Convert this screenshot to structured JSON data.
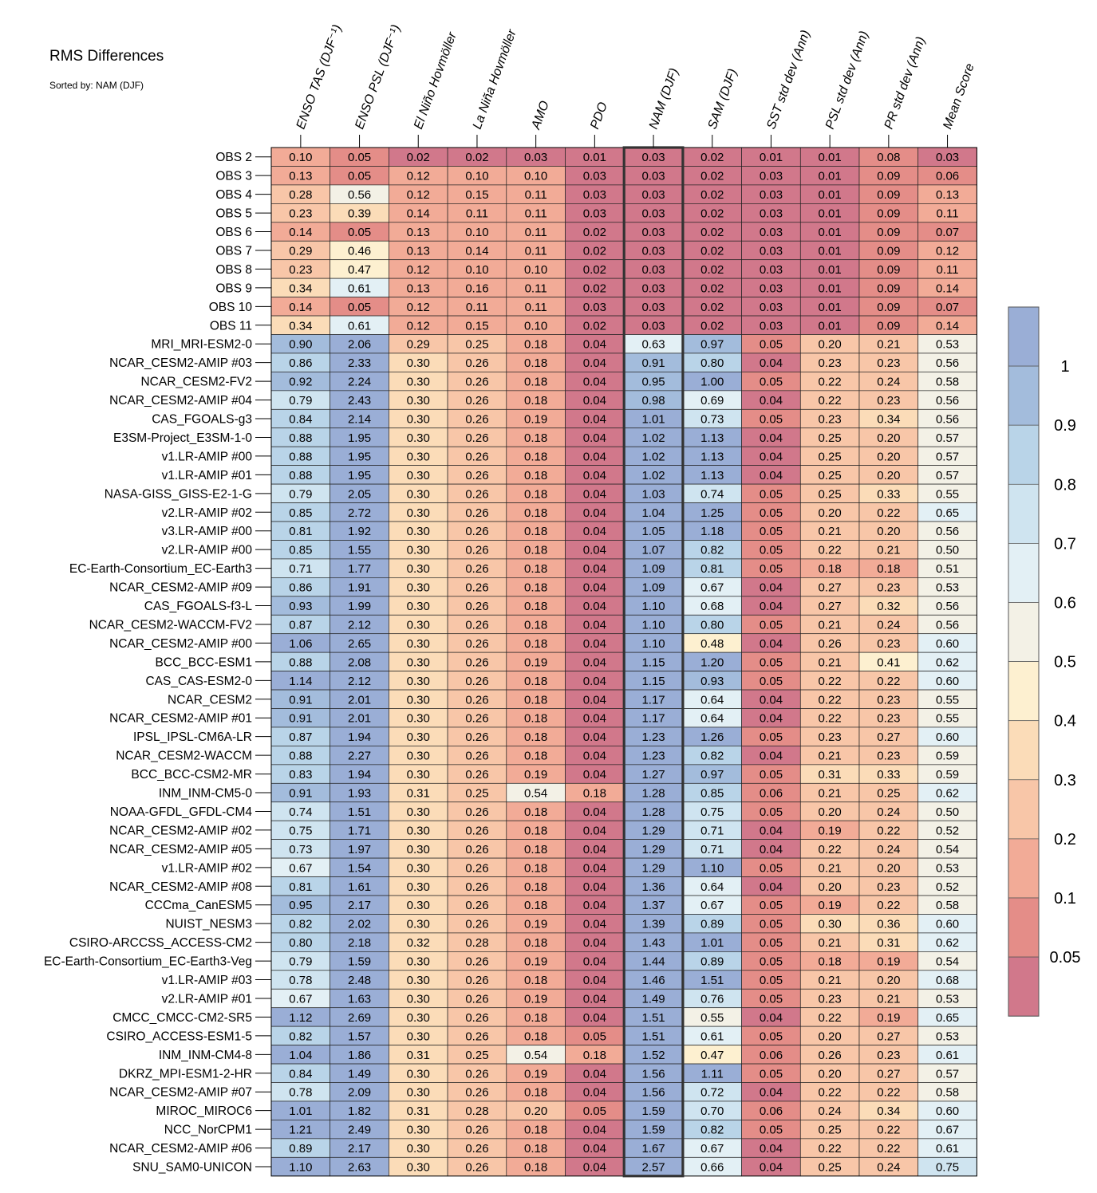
{
  "title": "RMS Differences",
  "subtitle": "Sorted by: NAM (DJF)",
  "chart_data": {
    "type": "heatmap",
    "title": "RMS Differences",
    "subtitle": "Sorted by: NAM (DJF)",
    "highlighted_column": "NAM (DJF)",
    "columns": [
      "ENSO TAS (DJF⁻¹)",
      "ENSO PSL (DJF⁻¹)",
      "El Niño Hovmöller",
      "La Niña Hovmöller",
      "AMO",
      "PDO",
      "NAM (DJF)",
      "SAM (DJF)",
      "SST std dev (Ann)",
      "PSL std dev (Ann)",
      "PR std dev (Ann)",
      "Mean Score"
    ],
    "rows": [
      {
        "name": "OBS 2",
        "values": [
          0.1,
          0.05,
          0.02,
          0.02,
          0.03,
          0.01,
          0.03,
          0.02,
          0.01,
          0.01,
          0.08,
          0.03
        ]
      },
      {
        "name": "OBS 3",
        "values": [
          0.13,
          0.05,
          0.12,
          0.1,
          0.1,
          0.03,
          0.03,
          0.02,
          0.03,
          0.01,
          0.09,
          0.06
        ]
      },
      {
        "name": "OBS 4",
        "values": [
          0.28,
          0.56,
          0.12,
          0.15,
          0.11,
          0.03,
          0.03,
          0.02,
          0.03,
          0.01,
          0.09,
          0.13
        ]
      },
      {
        "name": "OBS 5",
        "values": [
          0.23,
          0.39,
          0.14,
          0.11,
          0.11,
          0.03,
          0.03,
          0.02,
          0.03,
          0.01,
          0.09,
          0.11
        ]
      },
      {
        "name": "OBS 6",
        "values": [
          0.14,
          0.05,
          0.13,
          0.1,
          0.11,
          0.02,
          0.03,
          0.02,
          0.03,
          0.01,
          0.09,
          0.07
        ]
      },
      {
        "name": "OBS 7",
        "values": [
          0.29,
          0.46,
          0.13,
          0.14,
          0.11,
          0.02,
          0.03,
          0.02,
          0.03,
          0.01,
          0.09,
          0.12
        ]
      },
      {
        "name": "OBS 8",
        "values": [
          0.23,
          0.47,
          0.12,
          0.1,
          0.1,
          0.02,
          0.03,
          0.02,
          0.03,
          0.01,
          0.09,
          0.11
        ]
      },
      {
        "name": "OBS 9",
        "values": [
          0.34,
          0.61,
          0.13,
          0.16,
          0.11,
          0.02,
          0.03,
          0.02,
          0.03,
          0.01,
          0.09,
          0.14
        ]
      },
      {
        "name": "OBS 10",
        "values": [
          0.14,
          0.05,
          0.12,
          0.11,
          0.11,
          0.03,
          0.03,
          0.02,
          0.03,
          0.01,
          0.09,
          0.07
        ]
      },
      {
        "name": "OBS 11",
        "values": [
          0.34,
          0.61,
          0.12,
          0.15,
          0.1,
          0.02,
          0.03,
          0.02,
          0.03,
          0.01,
          0.09,
          0.14
        ]
      },
      {
        "name": "MRI_MRI-ESM2-0",
        "values": [
          0.9,
          2.06,
          0.29,
          0.25,
          0.18,
          0.04,
          0.63,
          0.97,
          0.05,
          0.2,
          0.21,
          0.53
        ]
      },
      {
        "name": "NCAR_CESM2-AMIP  #03",
        "values": [
          0.86,
          2.33,
          0.3,
          0.26,
          0.18,
          0.04,
          0.91,
          0.8,
          0.04,
          0.23,
          0.23,
          0.56
        ]
      },
      {
        "name": "NCAR_CESM2-FV2",
        "values": [
          0.92,
          2.24,
          0.3,
          0.26,
          0.18,
          0.04,
          0.95,
          1.0,
          0.05,
          0.22,
          0.24,
          0.58
        ]
      },
      {
        "name": "NCAR_CESM2-AMIP  #04",
        "values": [
          0.79,
          2.43,
          0.3,
          0.26,
          0.18,
          0.04,
          0.98,
          0.69,
          0.04,
          0.22,
          0.23,
          0.56
        ]
      },
      {
        "name": "CAS_FGOALS-g3",
        "values": [
          0.84,
          2.14,
          0.3,
          0.26,
          0.19,
          0.04,
          1.01,
          0.73,
          0.05,
          0.23,
          0.34,
          0.56
        ]
      },
      {
        "name": "E3SM-Project_E3SM-1-0",
        "values": [
          0.88,
          1.95,
          0.3,
          0.26,
          0.18,
          0.04,
          1.02,
          1.13,
          0.04,
          0.25,
          0.2,
          0.57
        ]
      },
      {
        "name": "v1.LR-AMIP  #00",
        "values": [
          0.88,
          1.95,
          0.3,
          0.26,
          0.18,
          0.04,
          1.02,
          1.13,
          0.04,
          0.25,
          0.2,
          0.57
        ]
      },
      {
        "name": "v1.LR-AMIP  #01",
        "values": [
          0.88,
          1.95,
          0.3,
          0.26,
          0.18,
          0.04,
          1.02,
          1.13,
          0.04,
          0.25,
          0.2,
          0.57
        ]
      },
      {
        "name": "NASA-GISS_GISS-E2-1-G",
        "values": [
          0.79,
          2.05,
          0.3,
          0.26,
          0.18,
          0.04,
          1.03,
          0.74,
          0.05,
          0.25,
          0.33,
          0.55
        ]
      },
      {
        "name": "v2.LR-AMIP  #02",
        "values": [
          0.85,
          2.72,
          0.3,
          0.26,
          0.18,
          0.04,
          1.04,
          1.25,
          0.05,
          0.2,
          0.22,
          0.65
        ]
      },
      {
        "name": "v3.LR-AMIP  #00",
        "values": [
          0.81,
          1.92,
          0.3,
          0.26,
          0.18,
          0.04,
          1.05,
          1.18,
          0.05,
          0.21,
          0.2,
          0.56
        ]
      },
      {
        "name": "v2.LR-AMIP  #00",
        "values": [
          0.85,
          1.55,
          0.3,
          0.26,
          0.18,
          0.04,
          1.07,
          0.82,
          0.05,
          0.22,
          0.21,
          0.5
        ]
      },
      {
        "name": "EC-Earth-Consortium_EC-Earth3",
        "values": [
          0.71,
          1.77,
          0.3,
          0.26,
          0.18,
          0.04,
          1.09,
          0.81,
          0.05,
          0.18,
          0.18,
          0.51
        ]
      },
      {
        "name": "NCAR_CESM2-AMIP  #09",
        "values": [
          0.86,
          1.91,
          0.3,
          0.26,
          0.18,
          0.04,
          1.09,
          0.67,
          0.04,
          0.27,
          0.23,
          0.53
        ]
      },
      {
        "name": "CAS_FGOALS-f3-L",
        "values": [
          0.93,
          1.99,
          0.3,
          0.26,
          0.18,
          0.04,
          1.1,
          0.68,
          0.04,
          0.27,
          0.32,
          0.56
        ]
      },
      {
        "name": "NCAR_CESM2-WACCM-FV2",
        "values": [
          0.87,
          2.12,
          0.3,
          0.26,
          0.18,
          0.04,
          1.1,
          0.8,
          0.05,
          0.21,
          0.24,
          0.56
        ]
      },
      {
        "name": "NCAR_CESM2-AMIP  #00",
        "values": [
          1.06,
          2.65,
          0.3,
          0.26,
          0.18,
          0.04,
          1.1,
          0.48,
          0.04,
          0.26,
          0.23,
          0.6
        ]
      },
      {
        "name": "BCC_BCC-ESM1",
        "values": [
          0.88,
          2.08,
          0.3,
          0.26,
          0.19,
          0.04,
          1.15,
          1.2,
          0.05,
          0.21,
          0.41,
          0.62
        ]
      },
      {
        "name": "CAS_CAS-ESM2-0",
        "values": [
          1.14,
          2.12,
          0.3,
          0.26,
          0.18,
          0.04,
          1.15,
          0.93,
          0.05,
          0.22,
          0.22,
          0.6
        ]
      },
      {
        "name": "NCAR_CESM2",
        "values": [
          0.91,
          2.01,
          0.3,
          0.26,
          0.18,
          0.04,
          1.17,
          0.64,
          0.04,
          0.22,
          0.23,
          0.55
        ]
      },
      {
        "name": "NCAR_CESM2-AMIP  #01",
        "values": [
          0.91,
          2.01,
          0.3,
          0.26,
          0.18,
          0.04,
          1.17,
          0.64,
          0.04,
          0.22,
          0.23,
          0.55
        ]
      },
      {
        "name": "IPSL_IPSL-CM6A-LR",
        "values": [
          0.87,
          1.94,
          0.3,
          0.26,
          0.18,
          0.04,
          1.23,
          1.26,
          0.05,
          0.23,
          0.27,
          0.6
        ]
      },
      {
        "name": "NCAR_CESM2-WACCM",
        "values": [
          0.88,
          2.27,
          0.3,
          0.26,
          0.18,
          0.04,
          1.23,
          0.82,
          0.04,
          0.21,
          0.23,
          0.59
        ]
      },
      {
        "name": "BCC_BCC-CSM2-MR",
        "values": [
          0.83,
          1.94,
          0.3,
          0.26,
          0.19,
          0.04,
          1.27,
          0.97,
          0.05,
          0.31,
          0.33,
          0.59
        ]
      },
      {
        "name": "INM_INM-CM5-0",
        "values": [
          0.91,
          1.93,
          0.31,
          0.25,
          0.54,
          0.18,
          1.28,
          0.85,
          0.06,
          0.21,
          0.25,
          0.62
        ]
      },
      {
        "name": "NOAA-GFDL_GFDL-CM4",
        "values": [
          0.74,
          1.51,
          0.3,
          0.26,
          0.18,
          0.04,
          1.28,
          0.75,
          0.05,
          0.2,
          0.24,
          0.5
        ]
      },
      {
        "name": "NCAR_CESM2-AMIP  #02",
        "values": [
          0.75,
          1.71,
          0.3,
          0.26,
          0.18,
          0.04,
          1.29,
          0.71,
          0.04,
          0.19,
          0.22,
          0.52
        ]
      },
      {
        "name": "NCAR_CESM2-AMIP  #05",
        "values": [
          0.73,
          1.97,
          0.3,
          0.26,
          0.18,
          0.04,
          1.29,
          0.71,
          0.04,
          0.22,
          0.24,
          0.54
        ]
      },
      {
        "name": "v1.LR-AMIP  #02",
        "values": [
          0.67,
          1.54,
          0.3,
          0.26,
          0.18,
          0.04,
          1.29,
          1.1,
          0.05,
          0.21,
          0.2,
          0.53
        ]
      },
      {
        "name": "NCAR_CESM2-AMIP  #08",
        "values": [
          0.81,
          1.61,
          0.3,
          0.26,
          0.18,
          0.04,
          1.36,
          0.64,
          0.04,
          0.2,
          0.23,
          0.52
        ]
      },
      {
        "name": "CCCma_CanESM5",
        "values": [
          0.95,
          2.17,
          0.3,
          0.26,
          0.18,
          0.04,
          1.37,
          0.67,
          0.05,
          0.19,
          0.22,
          0.58
        ]
      },
      {
        "name": "NUIST_NESM3",
        "values": [
          0.82,
          2.02,
          0.3,
          0.26,
          0.19,
          0.04,
          1.39,
          0.89,
          0.05,
          0.3,
          0.36,
          0.6
        ]
      },
      {
        "name": "CSIRO-ARCCSS_ACCESS-CM2",
        "values": [
          0.8,
          2.18,
          0.32,
          0.28,
          0.18,
          0.04,
          1.43,
          1.01,
          0.05,
          0.21,
          0.31,
          0.62
        ]
      },
      {
        "name": "EC-Earth-Consortium_EC-Earth3-Veg",
        "values": [
          0.79,
          1.59,
          0.3,
          0.26,
          0.19,
          0.04,
          1.44,
          0.89,
          0.05,
          0.18,
          0.19,
          0.54
        ]
      },
      {
        "name": "v1.LR-AMIP  #03",
        "values": [
          0.78,
          2.48,
          0.3,
          0.26,
          0.18,
          0.04,
          1.46,
          1.51,
          0.05,
          0.21,
          0.2,
          0.68
        ]
      },
      {
        "name": "v2.LR-AMIP  #01",
        "values": [
          0.67,
          1.63,
          0.3,
          0.26,
          0.19,
          0.04,
          1.49,
          0.76,
          0.05,
          0.23,
          0.21,
          0.53
        ]
      },
      {
        "name": "CMCC_CMCC-CM2-SR5",
        "values": [
          1.12,
          2.69,
          0.3,
          0.26,
          0.18,
          0.04,
          1.51,
          0.55,
          0.04,
          0.22,
          0.19,
          0.65
        ]
      },
      {
        "name": "CSIRO_ACCESS-ESM1-5",
        "values": [
          0.82,
          1.57,
          0.3,
          0.26,
          0.18,
          0.05,
          1.51,
          0.61,
          0.05,
          0.2,
          0.27,
          0.53
        ]
      },
      {
        "name": "INM_INM-CM4-8",
        "values": [
          1.04,
          1.86,
          0.31,
          0.25,
          0.54,
          0.18,
          1.52,
          0.47,
          0.06,
          0.26,
          0.23,
          0.61
        ]
      },
      {
        "name": "DKRZ_MPI-ESM1-2-HR",
        "values": [
          0.84,
          1.49,
          0.3,
          0.26,
          0.19,
          0.04,
          1.56,
          1.11,
          0.05,
          0.2,
          0.27,
          0.57
        ]
      },
      {
        "name": "NCAR_CESM2-AMIP  #07",
        "values": [
          0.78,
          2.09,
          0.3,
          0.26,
          0.18,
          0.04,
          1.56,
          0.72,
          0.04,
          0.22,
          0.22,
          0.58
        ]
      },
      {
        "name": "MIROC_MIROC6",
        "values": [
          1.01,
          1.82,
          0.31,
          0.28,
          0.2,
          0.05,
          1.59,
          0.7,
          0.06,
          0.24,
          0.34,
          0.6
        ]
      },
      {
        "name": "NCC_NorCPM1",
        "values": [
          1.21,
          2.49,
          0.3,
          0.26,
          0.18,
          0.04,
          1.59,
          0.82,
          0.05,
          0.25,
          0.22,
          0.67
        ]
      },
      {
        "name": "NCAR_CESM2-AMIP  #06",
        "values": [
          0.89,
          2.17,
          0.3,
          0.26,
          0.18,
          0.04,
          1.67,
          0.67,
          0.04,
          0.22,
          0.22,
          0.61
        ]
      },
      {
        "name": "SNU_SAM0-UNICON",
        "values": [
          1.1,
          2.63,
          0.3,
          0.26,
          0.18,
          0.04,
          2.57,
          0.66,
          0.04,
          0.25,
          0.24,
          0.75
        ]
      }
    ],
    "colorbar": {
      "levels": [
        0.05,
        0.1,
        0.2,
        0.3,
        0.4,
        0.5,
        0.6,
        0.7,
        0.8,
        0.9,
        1
      ],
      "labels": [
        "1",
        "0.9",
        "0.8",
        "0.7",
        "0.6",
        "0.5",
        "0.4",
        "0.3",
        "0.2",
        "0.1",
        "0.05"
      ],
      "colors_low_to_high": [
        "#d1788b",
        "#e48d88",
        "#f2ab97",
        "#f8c6a8",
        "#fbdcb8",
        "#fdf0d0",
        "#f3f1e6",
        "#e3f0f5",
        "#cfe4f0",
        "#b9d4e8",
        "#a3bcdc",
        "#9aaed6"
      ]
    }
  }
}
